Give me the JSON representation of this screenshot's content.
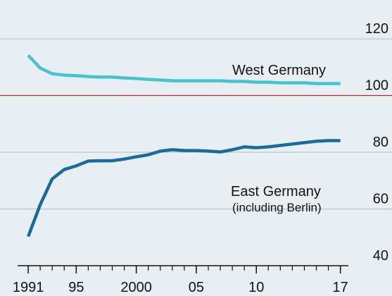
{
  "chart_data": {
    "type": "line",
    "x": [
      1991,
      1992,
      1993,
      1994,
      1995,
      1996,
      1997,
      1998,
      1999,
      2000,
      2001,
      2002,
      2003,
      2004,
      2005,
      2006,
      2007,
      2008,
      2009,
      2010,
      2011,
      2012,
      2013,
      2014,
      2015,
      2016,
      2017
    ],
    "series": [
      {
        "name": "West Germany",
        "color": "#45c3d2",
        "values": [
          114.2,
          109.7,
          107.7,
          107.2,
          107,
          106.7,
          106.5,
          106.5,
          106.2,
          106,
          105.7,
          105.5,
          105.2,
          105.2,
          105.2,
          105.2,
          105.2,
          105,
          105,
          104.7,
          104.7,
          104.5,
          104.5,
          104.5,
          104.2,
          104.2,
          104.2
        ]
      },
      {
        "name": "East Germany",
        "color": "#1b6a9c",
        "values": [
          50.3,
          61.5,
          70.6,
          73.9,
          75.2,
          76.9,
          77,
          77,
          77.6,
          78.4,
          79.1,
          80.4,
          80.9,
          80.6,
          80.6,
          80.4,
          80.1,
          80.9,
          81.9,
          81.6,
          81.9,
          82.4,
          82.9,
          83.4,
          83.9,
          84.1,
          84.1
        ]
      }
    ],
    "annotations": [
      "(including Berlin)"
    ],
    "xlim": [
      1988.65,
      2021.3
    ],
    "xticks": [
      {
        "value": 1991,
        "label": "1991"
      },
      {
        "value": 1995,
        "label": "95"
      },
      {
        "value": 2000,
        "label": "2000"
      },
      {
        "value": 2005,
        "label": "05"
      },
      {
        "value": 2010,
        "label": "10"
      },
      {
        "value": 2017,
        "label": "17"
      }
    ],
    "xminorticks": [
      1991,
      1992,
      1993,
      1994,
      1995,
      1996,
      1997,
      1998,
      1999,
      2000,
      2001,
      2002,
      2003,
      2004,
      2005,
      2006,
      2007,
      2008,
      2009,
      2010,
      2011,
      2012,
      2013,
      2014,
      2015,
      2016,
      2017
    ],
    "ylim": [
      29.3,
      133.7
    ],
    "yticks": [
      40,
      60,
      80,
      100,
      120
    ],
    "grid": true,
    "reference_line": {
      "value": 100,
      "color": "#e3120b"
    }
  }
}
